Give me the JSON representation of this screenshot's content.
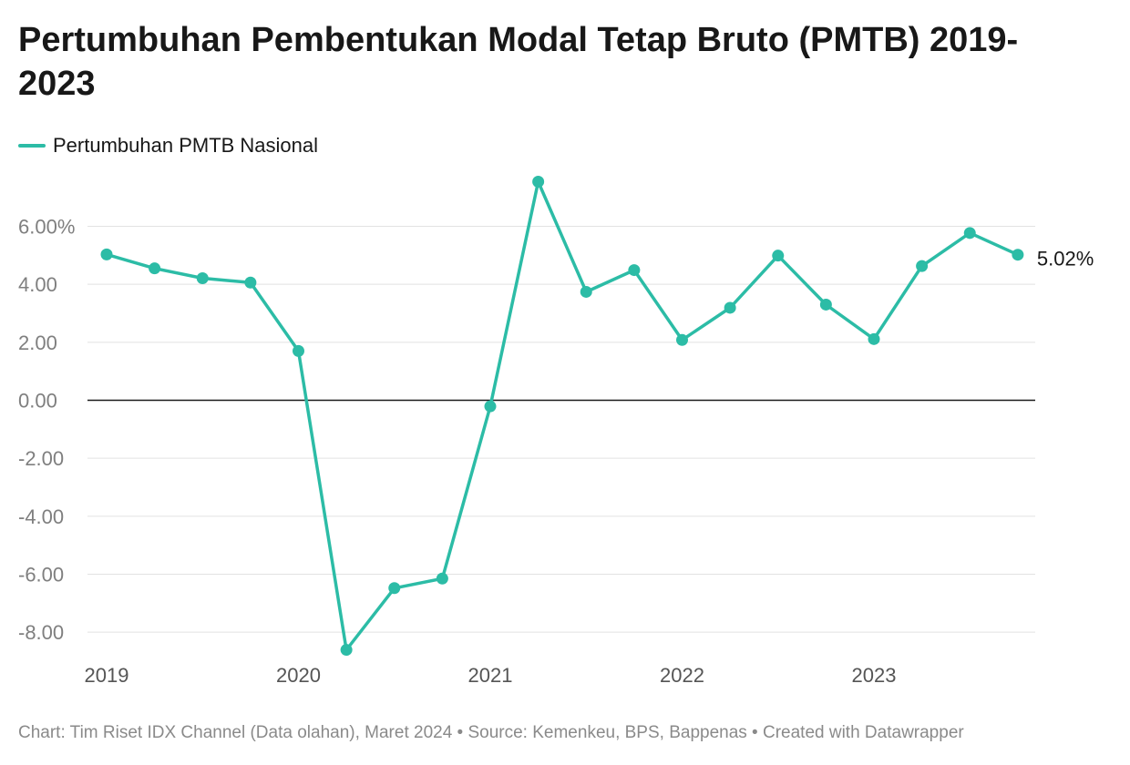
{
  "chart_data": {
    "type": "line",
    "title": "Pertumbuhan Pembentukan Modal Tetap Bruto (PMTB) 2019-2023",
    "xlabel": "",
    "ylabel": "",
    "ylim": [
      -8.6,
      7.5
    ],
    "yticks": [
      6,
      4,
      2,
      0,
      -2,
      -4,
      -6,
      -8
    ],
    "ytick_labels": [
      "6.00%",
      "4.00",
      "2.00",
      "0.00",
      "-2.00",
      "-4.00",
      "-6.00",
      "-8.00"
    ],
    "xticks": [
      2019,
      2020,
      2021,
      2022,
      2023
    ],
    "xtick_labels": [
      "2019",
      "2020",
      "2021",
      "2022",
      "2023"
    ],
    "x": [
      2019.0,
      2019.25,
      2019.5,
      2019.75,
      2020.0,
      2020.25,
      2020.5,
      2020.75,
      2021.0,
      2021.25,
      2021.5,
      2021.75,
      2022.0,
      2022.25,
      2022.5,
      2022.75,
      2023.0,
      2023.25,
      2023.5,
      2023.75
    ],
    "series": [
      {
        "name": "Pertumbuhan PMTB Nasional",
        "color": "#2cbca6",
        "values": [
          5.03,
          4.55,
          4.21,
          4.06,
          1.7,
          -8.61,
          -6.48,
          -6.15,
          -0.21,
          7.54,
          3.74,
          4.49,
          2.08,
          3.19,
          4.99,
          3.3,
          2.11,
          4.63,
          5.77,
          5.02
        ]
      }
    ],
    "end_label": "5.02%",
    "grid": true,
    "legend_position": "top-left"
  },
  "footer": {
    "text": "Chart: Tim Riset IDX Channel (Data olahan), Maret 2024 • Source: Kemenkeu, BPS, Bappenas • Created with Datawrapper"
  }
}
